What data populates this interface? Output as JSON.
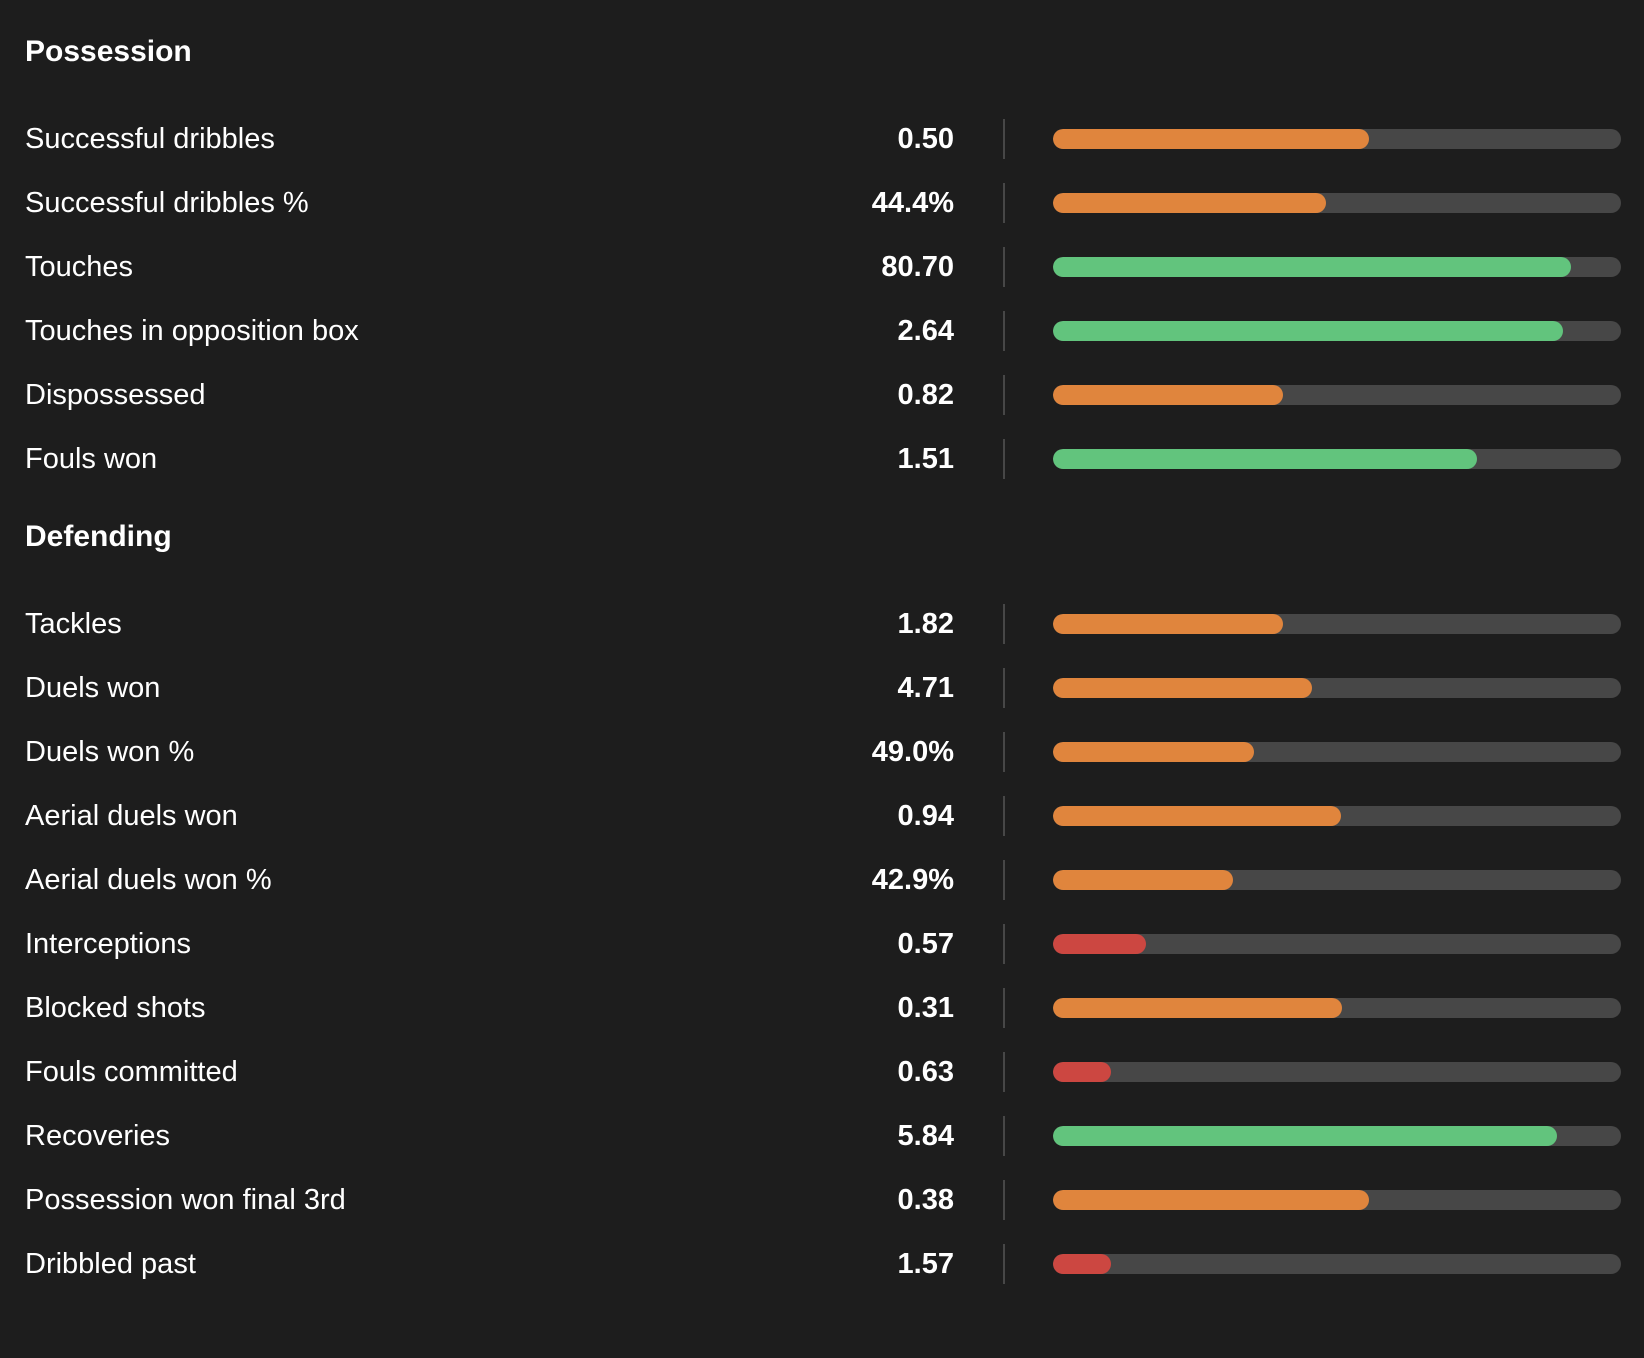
{
  "colors": {
    "background": "#1d1d1d",
    "track": "#474747",
    "high": "#62c47d",
    "mid": "#e0853d",
    "low": "#cc4741",
    "text": "#ffffff"
  },
  "sections": [
    {
      "title": "Possession",
      "stats": [
        {
          "label": "Successful dribbles",
          "value": "0.50",
          "percentile": 0.556,
          "rating": "mid"
        },
        {
          "label": "Successful dribbles %",
          "value": "44.4%",
          "percentile": 0.481,
          "rating": "mid"
        },
        {
          "label": "Touches",
          "value": "80.70",
          "percentile": 0.912,
          "rating": "high"
        },
        {
          "label": "Touches in opposition box",
          "value": "2.64",
          "percentile": 0.898,
          "rating": "high"
        },
        {
          "label": "Dispossessed",
          "value": "0.82",
          "percentile": 0.405,
          "rating": "mid"
        },
        {
          "label": "Fouls won",
          "value": "1.51",
          "percentile": 0.746,
          "rating": "high"
        }
      ]
    },
    {
      "title": "Defending",
      "stats": [
        {
          "label": "Tackles",
          "value": "1.82",
          "percentile": 0.405,
          "rating": "mid"
        },
        {
          "label": "Duels won",
          "value": "4.71",
          "percentile": 0.456,
          "rating": "mid"
        },
        {
          "label": "Duels won %",
          "value": "49.0%",
          "percentile": 0.354,
          "rating": "mid"
        },
        {
          "label": "Aerial duels won",
          "value": "0.94",
          "percentile": 0.507,
          "rating": "mid"
        },
        {
          "label": "Aerial duels won %",
          "value": "42.9%",
          "percentile": 0.317,
          "rating": "mid"
        },
        {
          "label": "Interceptions",
          "value": "0.57",
          "percentile": 0.164,
          "rating": "low"
        },
        {
          "label": "Blocked shots",
          "value": "0.31",
          "percentile": 0.508,
          "rating": "mid"
        },
        {
          "label": "Fouls committed",
          "value": "0.63",
          "percentile": 0.102,
          "rating": "low"
        },
        {
          "label": "Recoveries",
          "value": "5.84",
          "percentile": 0.887,
          "rating": "high"
        },
        {
          "label": "Possession won final 3rd",
          "value": "0.38",
          "percentile": 0.557,
          "rating": "mid"
        },
        {
          "label": "Dribbled past",
          "value": "1.57",
          "percentile": 0.102,
          "rating": "low"
        }
      ]
    }
  ]
}
